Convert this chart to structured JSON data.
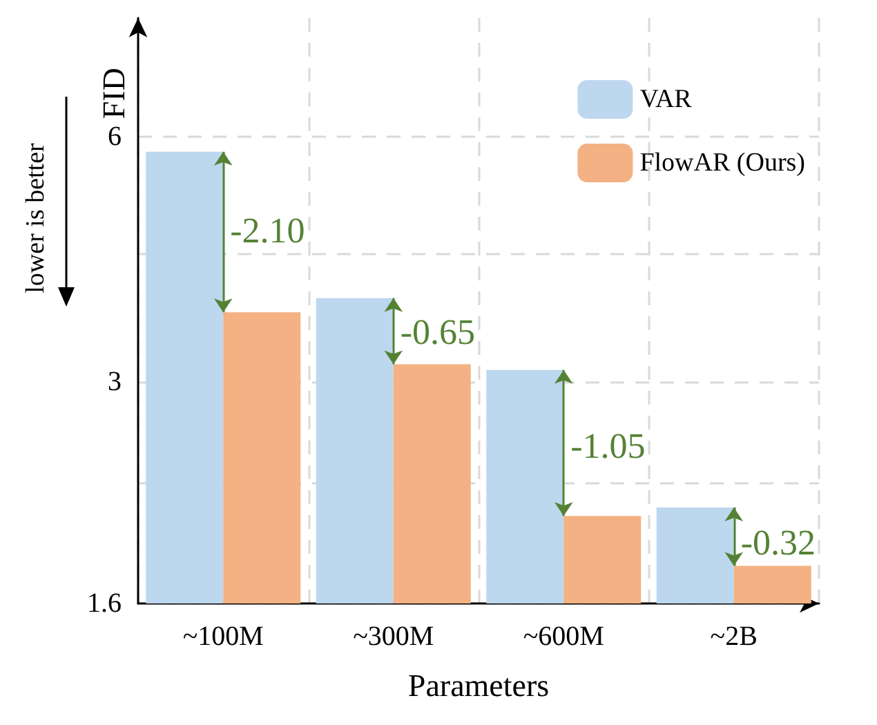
{
  "chart_data": {
    "type": "bar",
    "ylabel": "FID",
    "xlabel": "Parameters",
    "categories": [
      "~100M",
      "~300M",
      "~600M",
      "~2B"
    ],
    "series": [
      {
        "name": "VAR",
        "color": "#bdd7ee",
        "values": [
          5.75,
          3.8,
          3.1,
          2.1
        ]
      },
      {
        "name": "FlowAR (Ours)",
        "color": "#f4b183",
        "values": [
          3.65,
          3.15,
          2.05,
          1.78
        ]
      }
    ],
    "log": true,
    "ylim": [
      1.6,
      8.4
    ],
    "yticks": [
      1.6,
      {
        "value": 2.25,
        "label": null
      },
      3,
      {
        "value": 4.3,
        "label": null
      },
      6
    ],
    "grid": true,
    "legend": "top right",
    "annotations": [
      "lower is better",
      {
        "text": "-2.10",
        "x": "~100M",
        "y": 4.6
      },
      {
        "text": "-0.65",
        "x": "~300M",
        "y": 3.45
      },
      {
        "text": "-1.05",
        "x": "~600M",
        "y": 2.5
      },
      {
        "text": "-0.32",
        "x": "~2B",
        "y": 1.9
      }
    ]
  }
}
